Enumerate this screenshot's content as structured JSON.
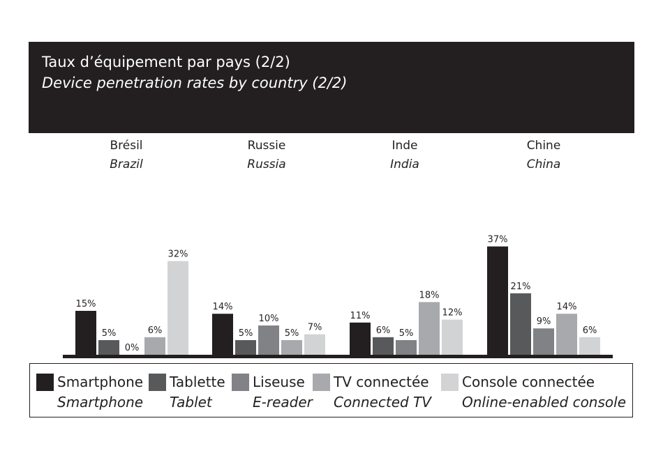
{
  "header": {
    "title_fr": "Taux d’équipement par pays (2/2)",
    "title_en": "Device penetration rates by country (2/2)"
  },
  "colors": {
    "header_bg": "#231f20",
    "axis": "#231f20",
    "series": [
      "#231f20",
      "#58595b",
      "#808285",
      "#a7a9ac",
      "#d1d3d4"
    ]
  },
  "chart_data": {
    "type": "bar",
    "categories": [
      {
        "fr": "Brésil",
        "en": "Brazil"
      },
      {
        "fr": "Russie",
        "en": "Russia"
      },
      {
        "fr": "Inde",
        "en": "India"
      },
      {
        "fr": "Chine",
        "en": "China"
      }
    ],
    "series": [
      {
        "name_fr": "Smartphone",
        "name_en": "Smartphone",
        "values": [
          15,
          14,
          11,
          37
        ]
      },
      {
        "name_fr": "Tablette",
        "name_en": "Tablet",
        "values": [
          5,
          5,
          6,
          21
        ]
      },
      {
        "name_fr": "Liseuse",
        "name_en": "E-reader",
        "values": [
          0,
          10,
          5,
          9
        ]
      },
      {
        "name_fr": "TV connectée",
        "name_en": "Connected TV",
        "values": [
          6,
          5,
          18,
          14
        ]
      },
      {
        "name_fr": "Console connectée",
        "name_en": "Online-enabled console",
        "values": [
          32,
          7,
          12,
          6
        ]
      }
    ],
    "value_suffix": "%",
    "ylim": [
      0,
      40
    ],
    "legend_position": "bottom",
    "grid": false
  }
}
